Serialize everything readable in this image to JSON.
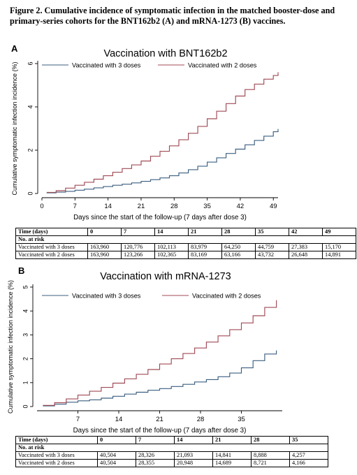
{
  "caption": "Figure 2. Cumulative incidence of symptomatic infection in the matched booster-dose and primary-series cohorts for the BNT162b2 (A) and mRNA-1273 (B) vaccines.",
  "colors": {
    "three_doses": "#3b5f80",
    "two_doses": "#a04a55"
  },
  "panels": [
    {
      "letter": "A",
      "table": {
        "time_label": "Time (days)",
        "times": [
          "0",
          "7",
          "14",
          "21",
          "28",
          "35",
          "42",
          "49"
        ],
        "at_risk_label": "No. at risk",
        "rows": [
          {
            "label": "Vaccinated with 3 doses",
            "values": [
              "163,960",
              "120,776",
              "102,113",
              "83,979",
              "64,250",
              "44,759",
              "27,383",
              "15,170"
            ]
          },
          {
            "label": "Vaccinated with 2 doses",
            "values": [
              "163,960",
              "123,266",
              "102,365",
              "83,169",
              "63,166",
              "43,732",
              "26,648",
              "14,891"
            ]
          }
        ]
      }
    },
    {
      "letter": "B",
      "table": {
        "time_label": "Time (days)",
        "times": [
          "0",
          "7",
          "14",
          "21",
          "28",
          "35"
        ],
        "at_risk_label": "No. at risk",
        "rows": [
          {
            "label": "Vaccinated with 3 doses",
            "values": [
              "40,504",
              "28,326",
              "21,093",
              "14,841",
              "8,888",
              "4,257"
            ]
          },
          {
            "label": "Vaccinated with 2 doses",
            "values": [
              "40,504",
              "28,355",
              "20,948",
              "14,689",
              "8,721",
              "4,166"
            ]
          }
        ]
      }
    }
  ],
  "chart_data": [
    {
      "type": "line",
      "title": "Vaccination with BNT162b2",
      "xlabel": "Days since the start of the follow-up (7 days after dose 3)",
      "ylabel": "Cumulative symptomatic infection incidence (%)",
      "xlim": [
        0,
        50
      ],
      "ylim": [
        0,
        6
      ],
      "xticks": [
        0,
        7,
        14,
        21,
        28,
        35,
        42,
        49
      ],
      "yticks": [
        0,
        2,
        4,
        6
      ],
      "legend": "top",
      "grid": false,
      "step": true,
      "series": [
        {
          "name": "Vaccinated with 3 doses",
          "x": [
            1,
            3,
            5,
            7,
            9,
            11,
            13,
            15,
            17,
            19,
            21,
            23,
            25,
            27,
            29,
            31,
            33,
            35,
            37,
            39,
            41,
            43,
            45,
            47,
            49,
            50
          ],
          "y": [
            0.03,
            0.06,
            0.1,
            0.15,
            0.2,
            0.26,
            0.32,
            0.38,
            0.43,
            0.49,
            0.56,
            0.64,
            0.72,
            0.82,
            0.95,
            1.1,
            1.26,
            1.45,
            1.65,
            1.85,
            2.05,
            2.25,
            2.45,
            2.65,
            2.85,
            2.98
          ]
        },
        {
          "name": "Vaccinated with 2 doses",
          "x": [
            1,
            3,
            5,
            7,
            9,
            11,
            13,
            15,
            17,
            19,
            21,
            23,
            25,
            27,
            29,
            31,
            33,
            35,
            37,
            39,
            41,
            43,
            45,
            47,
            49,
            50
          ],
          "y": [
            0.05,
            0.13,
            0.25,
            0.38,
            0.52,
            0.66,
            0.82,
            0.98,
            1.15,
            1.32,
            1.5,
            1.72,
            1.95,
            2.2,
            2.48,
            2.78,
            3.1,
            3.45,
            3.8,
            4.15,
            4.5,
            4.8,
            5.05,
            5.28,
            5.45,
            5.6
          ]
        }
      ]
    },
    {
      "type": "line",
      "title": "Vaccination with mRNA-1273",
      "xlabel": "Days since the start of the follow-up (7 days after dose 3)",
      "ylabel": "Cumulative symptomatic infection incidence (%)",
      "xlim": [
        0,
        42
      ],
      "ylim": [
        0,
        5
      ],
      "xticks": [
        7,
        14,
        21,
        28,
        35
      ],
      "yticks": [
        0,
        1,
        2,
        3,
        4,
        5
      ],
      "legend": "top",
      "grid": false,
      "step": true,
      "series": [
        {
          "name": "Vaccinated with 3 doses",
          "x": [
            1,
            3,
            5,
            7,
            9,
            11,
            13,
            15,
            17,
            19,
            21,
            23,
            25,
            27,
            29,
            31,
            33,
            35,
            37,
            39,
            41
          ],
          "y": [
            0.03,
            0.1,
            0.18,
            0.24,
            0.28,
            0.35,
            0.43,
            0.52,
            0.6,
            0.68,
            0.75,
            0.84,
            0.93,
            1.03,
            1.13,
            1.25,
            1.4,
            1.62,
            1.92,
            2.2,
            2.35
          ]
        },
        {
          "name": "Vaccinated with 2 doses",
          "x": [
            1,
            3,
            5,
            7,
            9,
            11,
            13,
            15,
            17,
            19,
            21,
            23,
            25,
            27,
            29,
            31,
            33,
            35,
            37,
            39,
            41
          ],
          "y": [
            0.05,
            0.16,
            0.32,
            0.48,
            0.64,
            0.8,
            0.98,
            1.16,
            1.35,
            1.55,
            1.78,
            2.0,
            2.22,
            2.45,
            2.7,
            2.96,
            3.22,
            3.5,
            3.8,
            4.15,
            4.45
          ]
        }
      ]
    }
  ]
}
